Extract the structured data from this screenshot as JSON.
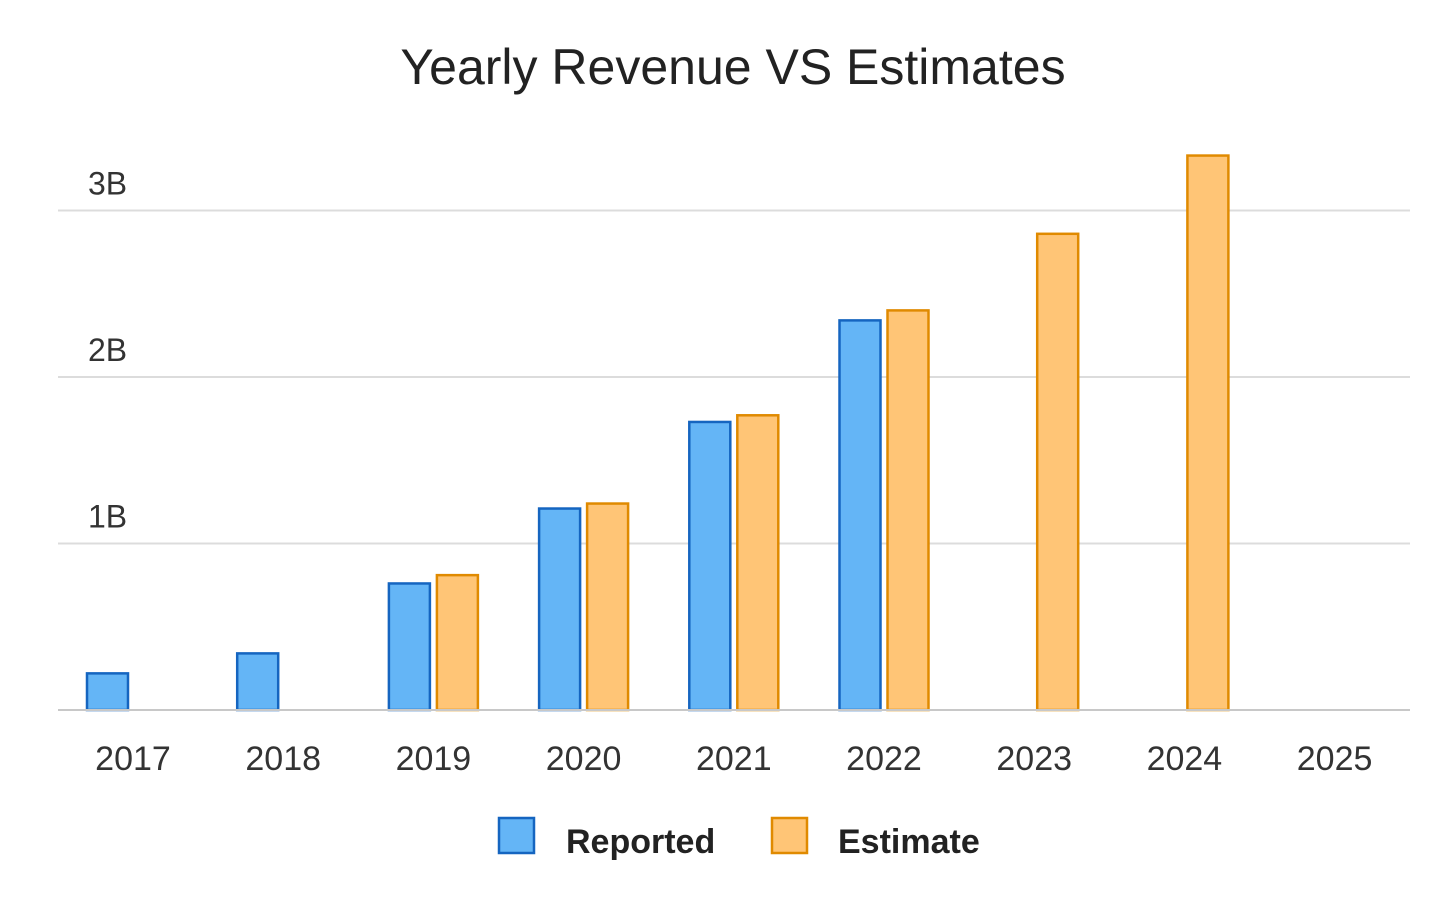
{
  "chart_data": {
    "type": "bar",
    "title": "Yearly Revenue VS Estimates",
    "xlabel": "",
    "ylabel": "",
    "categories": [
      "2017",
      "2018",
      "2019",
      "2020",
      "2021",
      "2022",
      "2023",
      "2024",
      "2025"
    ],
    "series": [
      {
        "name": "Reported",
        "color": "#64b5f6",
        "stroke": "#1565c0",
        "values": [
          0.22,
          0.34,
          0.76,
          1.21,
          1.73,
          2.34,
          null,
          null,
          null
        ]
      },
      {
        "name": "Estimate",
        "color": "#ffc576",
        "stroke": "#e08a00",
        "values": [
          null,
          null,
          0.81,
          1.24,
          1.77,
          2.4,
          2.86,
          3.33,
          null
        ]
      }
    ],
    "ylim": [
      0,
      3.3
    ],
    "yticks": [
      {
        "value": 1,
        "label": "1B"
      },
      {
        "value": 2,
        "label": "2B"
      },
      {
        "value": 3,
        "label": "3B"
      }
    ],
    "grid": true,
    "legend_position": "bottom-center"
  }
}
